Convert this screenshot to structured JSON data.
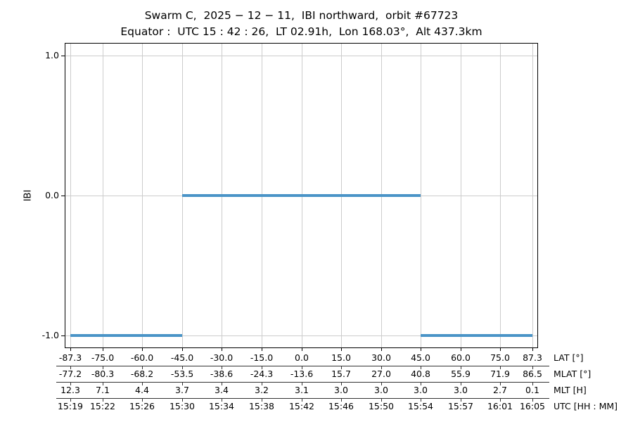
{
  "chart_data": {
    "type": "line",
    "title": "Swarm C,  2025 − 12 − 11,  IBI northward,  orbit #67723",
    "subtitle": "Equator :  UTC 15 : 42 : 26,  LT 02.91h,  Lon 168.03°,  Alt 437.3km",
    "ylabel": "IBI",
    "ylim": [
      -1.09,
      1.09
    ],
    "yticks": [
      1.0,
      0.0,
      -1.0
    ],
    "ytick_labels": [
      "1.0",
      "0.0",
      "-1.0"
    ],
    "x_unit": "LAT degrees",
    "xlim": [
      -89.3,
      89.3
    ],
    "xticks_lat": [
      -87.3,
      -75.0,
      -60.0,
      -45.0,
      -30.0,
      -15.0,
      0.0,
      15.0,
      30.0,
      45.0,
      60.0,
      75.0,
      87.3
    ],
    "grid": true,
    "legend": "none",
    "series": [
      {
        "name": "IBI",
        "segments": [
          {
            "y": -1.0,
            "x0_lat": -87.3,
            "x1_lat": -45.0
          },
          {
            "y": 0.0,
            "x0_lat": -45.0,
            "x1_lat": 45.0
          },
          {
            "y": -1.0,
            "x0_lat": 45.0,
            "x1_lat": 87.3
          }
        ]
      }
    ],
    "xaxis_rows": [
      {
        "label": "LAT [°]",
        "values": [
          "-87.3",
          "-75.0",
          "-60.0",
          "-45.0",
          "-30.0",
          "-15.0",
          "0.0",
          "15.0",
          "30.0",
          "45.0",
          "60.0",
          "75.0",
          "87.3"
        ]
      },
      {
        "label": "MLAT [°]",
        "values": [
          "-77.2",
          "-80.3",
          "-68.2",
          "-53.5",
          "-38.6",
          "-24.3",
          "-13.6",
          "15.7",
          "27.0",
          "40.8",
          "55.9",
          "71.9",
          "86.5"
        ]
      },
      {
        "label": "MLT [H]",
        "values": [
          "12.3",
          "7.1",
          "4.4",
          "3.7",
          "3.4",
          "3.2",
          "3.1",
          "3.0",
          "3.0",
          "3.0",
          "3.0",
          "2.7",
          "0.1"
        ]
      },
      {
        "label": "UTC [HH : MM]",
        "values": [
          "15:19",
          "15:22",
          "15:26",
          "15:30",
          "15:34",
          "15:38",
          "15:42",
          "15:46",
          "15:50",
          "15:54",
          "15:57",
          "16:01",
          "16:05"
        ]
      }
    ],
    "colors": {
      "line": "#4a94c7",
      "grid": "#cccccc",
      "spine": "#000000",
      "row_line": "#333333",
      "text": "#000000"
    }
  }
}
